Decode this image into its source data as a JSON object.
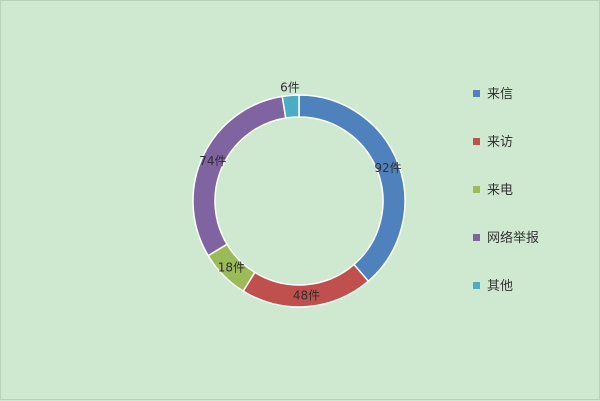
{
  "chart_data": {
    "type": "pie",
    "donut": true,
    "title": "",
    "unit": "件",
    "legend_position": "right",
    "start_angle_deg": 0,
    "direction": "clockwise",
    "slices": [
      {
        "name": "来信",
        "value": 92,
        "label": "92件",
        "color": "#4f81bd"
      },
      {
        "name": "来访",
        "value": 48,
        "label": "48件",
        "color": "#c0504d"
      },
      {
        "name": "来电",
        "value": 18,
        "label": "18件",
        "color": "#9bbb59"
      },
      {
        "name": "网络举报",
        "value": 74,
        "label": "74件",
        "color": "#8064a2"
      },
      {
        "name": "其他",
        "value": 6,
        "label": "6件",
        "color": "#4bacc6"
      }
    ]
  }
}
